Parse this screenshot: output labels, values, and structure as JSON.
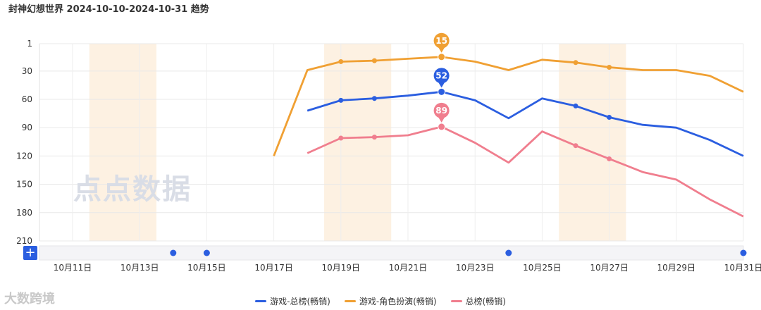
{
  "title": "封神幻想世界 2024-10-10-2024-10-31 趋势",
  "watermark": "点点数据",
  "corner_watermark": "大数跨境",
  "zoom_button_label": "+",
  "chart_data": {
    "type": "line",
    "y_reversed": true,
    "ylim": [
      1,
      210
    ],
    "yticks": [
      "1",
      "30",
      "60",
      "90",
      "120",
      "150",
      "180",
      "210"
    ],
    "x": [
      "10-11",
      "10-12",
      "10-13",
      "10-14",
      "10-15",
      "10-16",
      "10-17",
      "10-18",
      "10-19",
      "10-20",
      "10-21",
      "10-22",
      "10-23",
      "10-24",
      "10-25",
      "10-26",
      "10-27",
      "10-28",
      "10-29",
      "10-30",
      "10-31"
    ],
    "xtick_labels": [
      "10月11日",
      "10月13日",
      "10月15日",
      "10月17日",
      "10月19日",
      "10月21日",
      "10月23日",
      "10月25日",
      "10月27日",
      "10月29日",
      "10月31日"
    ],
    "highlight_bands": [
      [
        "10-12",
        "10-13"
      ],
      [
        "10-19",
        "10-20"
      ],
      [
        "10-26",
        "10-27"
      ]
    ],
    "series": [
      {
        "name": "游戏-总榜(畅销)",
        "color": "#2b5ee0",
        "values": [
          null,
          null,
          null,
          null,
          null,
          null,
          null,
          72,
          61,
          59,
          56,
          52,
          61,
          80,
          59,
          67,
          79,
          87,
          90,
          103,
          120
        ],
        "markers": [
          8,
          9,
          15,
          16
        ],
        "callout": {
          "index": 11,
          "label": "52"
        }
      },
      {
        "name": "游戏-角色扮演(畅销)",
        "color": "#f0a033",
        "values": [
          null,
          null,
          null,
          null,
          null,
          null,
          120,
          29,
          20,
          19,
          17,
          15,
          20,
          29,
          18,
          21,
          26,
          29,
          29,
          35,
          52
        ],
        "markers": [
          8,
          9,
          15,
          16
        ],
        "callout": {
          "index": 11,
          "label": "15"
        }
      },
      {
        "name": "总榜(畅销)",
        "color": "#f07e8e",
        "values": [
          null,
          null,
          null,
          null,
          null,
          null,
          null,
          117,
          101,
          100,
          98,
          89,
          106,
          127,
          94,
          109,
          123,
          137,
          145,
          166,
          184
        ],
        "markers": [
          8,
          9,
          15,
          16
        ],
        "callout": {
          "index": 11,
          "label": "89"
        }
      }
    ],
    "scroller_dots": [
      "10-14",
      "10-15",
      "10-24",
      "10-31"
    ]
  }
}
